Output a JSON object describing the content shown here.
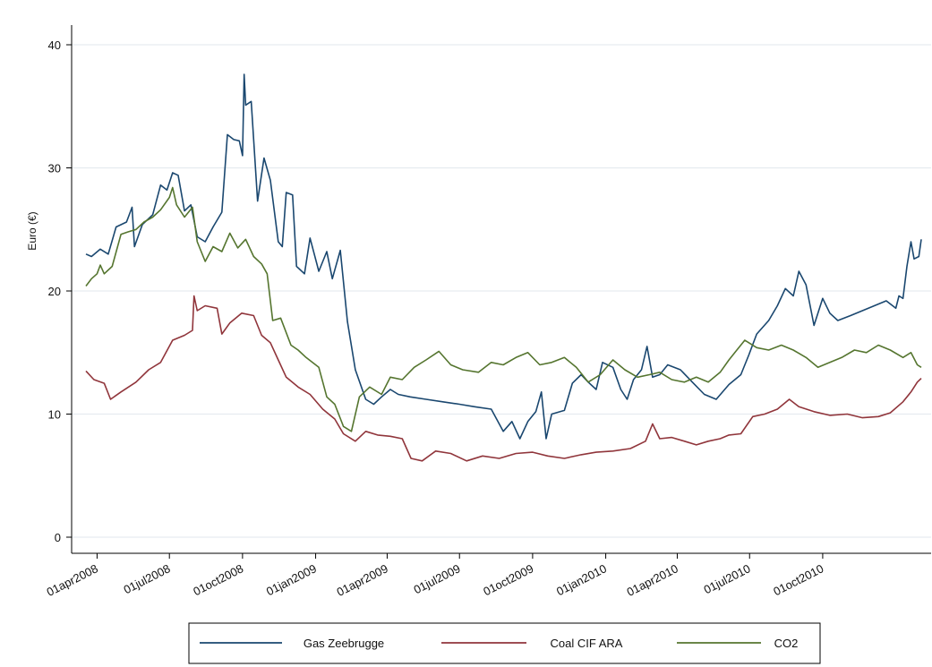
{
  "chart_data": {
    "type": "line",
    "ylabel": "Euro (€)",
    "ylim": [
      0,
      40
    ],
    "y_ticks": [
      0,
      10,
      20,
      30,
      40
    ],
    "x_range": [
      "2008-03-18",
      "2011-02-02"
    ],
    "x_ticks": [
      {
        "date": "2008-04-01",
        "label": "01apr2008"
      },
      {
        "date": "2008-07-01",
        "label": "01jul2008"
      },
      {
        "date": "2008-10-01",
        "label": "01oct2008"
      },
      {
        "date": "2009-01-01",
        "label": "01jan2009"
      },
      {
        "date": "2009-04-01",
        "label": "01apr2009"
      },
      {
        "date": "2009-07-01",
        "label": "01jul2009"
      },
      {
        "date": "2009-10-01",
        "label": "01oct2009"
      },
      {
        "date": "2010-01-01",
        "label": "01jan2010"
      },
      {
        "date": "2010-04-01",
        "label": "01apr2010"
      },
      {
        "date": "2010-07-01",
        "label": "01jul2010"
      },
      {
        "date": "2010-10-01",
        "label": "01oct2010"
      }
    ],
    "grid": true,
    "legend_position": "bottom",
    "series": [
      {
        "name": "Gas Zeebrugge",
        "color": "#1a476f",
        "points": [
          [
            "2008-03-18",
            23.0
          ],
          [
            "2008-03-25",
            22.8
          ],
          [
            "2008-04-05",
            23.4
          ],
          [
            "2008-04-15",
            23.0
          ],
          [
            "2008-04-25",
            25.2
          ],
          [
            "2008-05-08",
            25.6
          ],
          [
            "2008-05-15",
            26.8
          ],
          [
            "2008-05-18",
            23.6
          ],
          [
            "2008-05-28",
            25.4
          ],
          [
            "2008-06-10",
            26.2
          ],
          [
            "2008-06-20",
            28.6
          ],
          [
            "2008-06-28",
            28.2
          ],
          [
            "2008-07-05",
            29.6
          ],
          [
            "2008-07-12",
            29.4
          ],
          [
            "2008-07-20",
            26.5
          ],
          [
            "2008-07-28",
            27.0
          ],
          [
            "2008-08-05",
            24.4
          ],
          [
            "2008-08-15",
            24.0
          ],
          [
            "2008-08-25",
            25.2
          ],
          [
            "2008-09-05",
            26.4
          ],
          [
            "2008-09-12",
            32.7
          ],
          [
            "2008-09-20",
            32.3
          ],
          [
            "2008-09-27",
            32.2
          ],
          [
            "2008-10-01",
            31.0
          ],
          [
            "2008-10-03",
            37.6
          ],
          [
            "2008-10-05",
            35.1
          ],
          [
            "2008-10-12",
            35.4
          ],
          [
            "2008-10-20",
            27.3
          ],
          [
            "2008-10-28",
            30.8
          ],
          [
            "2008-11-05",
            29.0
          ],
          [
            "2008-11-15",
            24.0
          ],
          [
            "2008-11-20",
            23.6
          ],
          [
            "2008-11-25",
            28.0
          ],
          [
            "2008-12-03",
            27.8
          ],
          [
            "2008-12-08",
            22.0
          ],
          [
            "2008-12-18",
            21.4
          ],
          [
            "2008-12-25",
            24.3
          ],
          [
            "2009-01-05",
            21.6
          ],
          [
            "2009-01-15",
            23.2
          ],
          [
            "2009-01-22",
            21.0
          ],
          [
            "2009-02-01",
            23.3
          ],
          [
            "2009-02-10",
            17.5
          ],
          [
            "2009-02-20",
            13.6
          ],
          [
            "2009-03-05",
            11.2
          ],
          [
            "2009-03-15",
            10.8
          ],
          [
            "2009-03-25",
            11.4
          ],
          [
            "2009-04-05",
            12.0
          ],
          [
            "2009-04-15",
            11.6
          ],
          [
            "2009-04-30",
            11.4
          ],
          [
            "2009-05-20",
            11.2
          ],
          [
            "2009-06-10",
            11.0
          ],
          [
            "2009-07-01",
            10.8
          ],
          [
            "2009-07-20",
            10.6
          ],
          [
            "2009-08-10",
            10.4
          ],
          [
            "2009-08-25",
            8.6
          ],
          [
            "2009-09-05",
            9.4
          ],
          [
            "2009-09-15",
            8.0
          ],
          [
            "2009-09-25",
            9.4
          ],
          [
            "2009-10-05",
            10.2
          ],
          [
            "2009-10-12",
            11.8
          ],
          [
            "2009-10-18",
            8.0
          ],
          [
            "2009-10-25",
            10.0
          ],
          [
            "2009-11-10",
            10.3
          ],
          [
            "2009-11-20",
            12.5
          ],
          [
            "2009-12-01",
            13.2
          ],
          [
            "2009-12-10",
            12.6
          ],
          [
            "2009-12-20",
            12.0
          ],
          [
            "2009-12-28",
            14.2
          ],
          [
            "2010-01-10",
            13.8
          ],
          [
            "2010-01-20",
            12.0
          ],
          [
            "2010-01-28",
            11.2
          ],
          [
            "2010-02-05",
            12.8
          ],
          [
            "2010-02-15",
            13.6
          ],
          [
            "2010-02-22",
            15.5
          ],
          [
            "2010-03-01",
            13.0
          ],
          [
            "2010-03-10",
            13.2
          ],
          [
            "2010-03-20",
            14.0
          ],
          [
            "2010-04-05",
            13.6
          ],
          [
            "2010-04-20",
            12.6
          ],
          [
            "2010-05-05",
            11.6
          ],
          [
            "2010-05-20",
            11.2
          ],
          [
            "2010-06-05",
            12.4
          ],
          [
            "2010-06-20",
            13.2
          ],
          [
            "2010-06-30",
            14.8
          ],
          [
            "2010-07-10",
            16.5
          ],
          [
            "2010-07-25",
            17.6
          ],
          [
            "2010-08-05",
            18.8
          ],
          [
            "2010-08-15",
            20.2
          ],
          [
            "2010-08-25",
            19.6
          ],
          [
            "2010-09-01",
            21.6
          ],
          [
            "2010-09-10",
            20.5
          ],
          [
            "2010-09-20",
            17.2
          ],
          [
            "2010-10-01",
            19.4
          ],
          [
            "2010-10-10",
            18.2
          ],
          [
            "2010-10-20",
            17.6
          ],
          [
            "2010-11-05",
            18.0
          ],
          [
            "2010-11-20",
            18.4
          ],
          [
            "2010-12-05",
            18.8
          ],
          [
            "2010-12-20",
            19.2
          ],
          [
            "2011-01-01",
            18.6
          ],
          [
            "2011-01-05",
            19.6
          ],
          [
            "2011-01-10",
            19.4
          ],
          [
            "2011-01-15",
            22.0
          ],
          [
            "2011-01-20",
            24.0
          ],
          [
            "2011-01-24",
            22.6
          ],
          [
            "2011-01-30",
            22.8
          ],
          [
            "2011-02-02",
            24.2
          ]
        ]
      },
      {
        "name": "Coal CIF ARA",
        "color": "#90353b",
        "points": [
          [
            "2008-03-18",
            13.5
          ],
          [
            "2008-03-28",
            12.8
          ],
          [
            "2008-04-10",
            12.5
          ],
          [
            "2008-04-18",
            11.2
          ],
          [
            "2008-05-01",
            11.8
          ],
          [
            "2008-05-20",
            12.6
          ],
          [
            "2008-06-05",
            13.6
          ],
          [
            "2008-06-20",
            14.2
          ],
          [
            "2008-07-05",
            16.0
          ],
          [
            "2008-07-20",
            16.4
          ],
          [
            "2008-07-30",
            16.8
          ],
          [
            "2008-08-01",
            19.6
          ],
          [
            "2008-08-05",
            18.4
          ],
          [
            "2008-08-15",
            18.8
          ],
          [
            "2008-08-30",
            18.6
          ],
          [
            "2008-09-05",
            16.5
          ],
          [
            "2008-09-15",
            17.4
          ],
          [
            "2008-09-30",
            18.2
          ],
          [
            "2008-10-15",
            18.0
          ],
          [
            "2008-10-25",
            16.4
          ],
          [
            "2008-11-05",
            15.8
          ],
          [
            "2008-11-15",
            14.4
          ],
          [
            "2008-11-25",
            13.0
          ],
          [
            "2008-12-10",
            12.2
          ],
          [
            "2008-12-25",
            11.6
          ],
          [
            "2009-01-10",
            10.4
          ],
          [
            "2009-01-25",
            9.6
          ],
          [
            "2009-02-05",
            8.4
          ],
          [
            "2009-02-20",
            7.8
          ],
          [
            "2009-03-05",
            8.6
          ],
          [
            "2009-03-20",
            8.3
          ],
          [
            "2009-04-05",
            8.2
          ],
          [
            "2009-04-20",
            8.0
          ],
          [
            "2009-05-01",
            6.4
          ],
          [
            "2009-05-15",
            6.2
          ],
          [
            "2009-06-01",
            7.0
          ],
          [
            "2009-06-20",
            6.8
          ],
          [
            "2009-07-10",
            6.2
          ],
          [
            "2009-07-30",
            6.6
          ],
          [
            "2009-08-20",
            6.4
          ],
          [
            "2009-09-10",
            6.8
          ],
          [
            "2009-10-01",
            6.9
          ],
          [
            "2009-10-20",
            6.6
          ],
          [
            "2009-11-10",
            6.4
          ],
          [
            "2009-12-01",
            6.7
          ],
          [
            "2009-12-20",
            6.9
          ],
          [
            "2010-01-10",
            7.0
          ],
          [
            "2010-02-01",
            7.2
          ],
          [
            "2010-02-20",
            7.8
          ],
          [
            "2010-03-01",
            9.2
          ],
          [
            "2010-03-10",
            8.0
          ],
          [
            "2010-03-25",
            8.1
          ],
          [
            "2010-04-10",
            7.8
          ],
          [
            "2010-04-25",
            7.5
          ],
          [
            "2010-05-10",
            7.8
          ],
          [
            "2010-05-25",
            8.0
          ],
          [
            "2010-06-05",
            8.3
          ],
          [
            "2010-06-20",
            8.4
          ],
          [
            "2010-07-05",
            9.8
          ],
          [
            "2010-07-20",
            10.0
          ],
          [
            "2010-08-05",
            10.4
          ],
          [
            "2010-08-20",
            11.2
          ],
          [
            "2010-09-01",
            10.6
          ],
          [
            "2010-09-20",
            10.2
          ],
          [
            "2010-10-10",
            9.9
          ],
          [
            "2010-11-01",
            10.0
          ],
          [
            "2010-11-20",
            9.7
          ],
          [
            "2010-12-10",
            9.8
          ],
          [
            "2010-12-25",
            10.1
          ],
          [
            "2011-01-10",
            11.0
          ],
          [
            "2011-01-20",
            11.8
          ],
          [
            "2011-01-28",
            12.6
          ],
          [
            "2011-02-02",
            12.9
          ]
        ]
      },
      {
        "name": "CO2",
        "color": "#55752f",
        "points": [
          [
            "2008-03-18",
            20.4
          ],
          [
            "2008-03-25",
            21.0
          ],
          [
            "2008-04-01",
            21.4
          ],
          [
            "2008-04-05",
            22.1
          ],
          [
            "2008-04-10",
            21.4
          ],
          [
            "2008-04-20",
            22.0
          ],
          [
            "2008-05-01",
            24.6
          ],
          [
            "2008-05-10",
            24.8
          ],
          [
            "2008-05-20",
            25.0
          ],
          [
            "2008-05-30",
            25.6
          ],
          [
            "2008-06-10",
            26.0
          ],
          [
            "2008-06-20",
            26.6
          ],
          [
            "2008-07-01",
            27.6
          ],
          [
            "2008-07-05",
            28.4
          ],
          [
            "2008-07-10",
            27.0
          ],
          [
            "2008-07-20",
            26.0
          ],
          [
            "2008-07-30",
            26.8
          ],
          [
            "2008-08-05",
            24.0
          ],
          [
            "2008-08-15",
            22.4
          ],
          [
            "2008-08-25",
            23.6
          ],
          [
            "2008-09-05",
            23.2
          ],
          [
            "2008-09-15",
            24.7
          ],
          [
            "2008-09-25",
            23.5
          ],
          [
            "2008-10-05",
            24.2
          ],
          [
            "2008-10-15",
            22.8
          ],
          [
            "2008-10-25",
            22.2
          ],
          [
            "2008-11-01",
            21.4
          ],
          [
            "2008-11-08",
            17.6
          ],
          [
            "2008-11-18",
            17.8
          ],
          [
            "2008-12-01",
            15.6
          ],
          [
            "2008-12-10",
            15.2
          ],
          [
            "2008-12-20",
            14.6
          ],
          [
            "2009-01-05",
            13.8
          ],
          [
            "2009-01-15",
            11.4
          ],
          [
            "2009-01-25",
            10.8
          ],
          [
            "2009-02-05",
            9.0
          ],
          [
            "2009-02-15",
            8.6
          ],
          [
            "2009-02-25",
            11.4
          ],
          [
            "2009-03-10",
            12.2
          ],
          [
            "2009-03-25",
            11.6
          ],
          [
            "2009-04-05",
            13.0
          ],
          [
            "2009-04-20",
            12.8
          ],
          [
            "2009-05-05",
            13.8
          ],
          [
            "2009-05-20",
            14.4
          ],
          [
            "2009-06-05",
            15.1
          ],
          [
            "2009-06-20",
            14.0
          ],
          [
            "2009-07-05",
            13.6
          ],
          [
            "2009-07-25",
            13.4
          ],
          [
            "2009-08-10",
            14.2
          ],
          [
            "2009-08-25",
            14.0
          ],
          [
            "2009-09-10",
            14.6
          ],
          [
            "2009-09-25",
            15.0
          ],
          [
            "2009-10-10",
            14.0
          ],
          [
            "2009-10-25",
            14.2
          ],
          [
            "2009-11-10",
            14.6
          ],
          [
            "2009-11-25",
            13.8
          ],
          [
            "2009-12-10",
            12.6
          ],
          [
            "2009-12-25",
            13.2
          ],
          [
            "2010-01-10",
            14.4
          ],
          [
            "2010-01-25",
            13.6
          ],
          [
            "2010-02-10",
            13.0
          ],
          [
            "2010-02-25",
            13.2
          ],
          [
            "2010-03-10",
            13.4
          ],
          [
            "2010-03-25",
            12.8
          ],
          [
            "2010-04-10",
            12.6
          ],
          [
            "2010-04-25",
            13.0
          ],
          [
            "2010-05-10",
            12.6
          ],
          [
            "2010-05-25",
            13.4
          ],
          [
            "2010-06-05",
            14.4
          ],
          [
            "2010-06-15",
            15.2
          ],
          [
            "2010-06-25",
            16.0
          ],
          [
            "2010-07-10",
            15.4
          ],
          [
            "2010-07-25",
            15.2
          ],
          [
            "2010-08-10",
            15.6
          ],
          [
            "2010-08-25",
            15.2
          ],
          [
            "2010-09-10",
            14.6
          ],
          [
            "2010-09-25",
            13.8
          ],
          [
            "2010-10-10",
            14.2
          ],
          [
            "2010-10-25",
            14.6
          ],
          [
            "2010-11-10",
            15.2
          ],
          [
            "2010-11-25",
            15.0
          ],
          [
            "2010-12-10",
            15.6
          ],
          [
            "2010-12-25",
            15.2
          ],
          [
            "2011-01-10",
            14.6
          ],
          [
            "2011-01-20",
            15.0
          ],
          [
            "2011-01-28",
            14.0
          ],
          [
            "2011-02-02",
            13.8
          ]
        ]
      }
    ]
  }
}
